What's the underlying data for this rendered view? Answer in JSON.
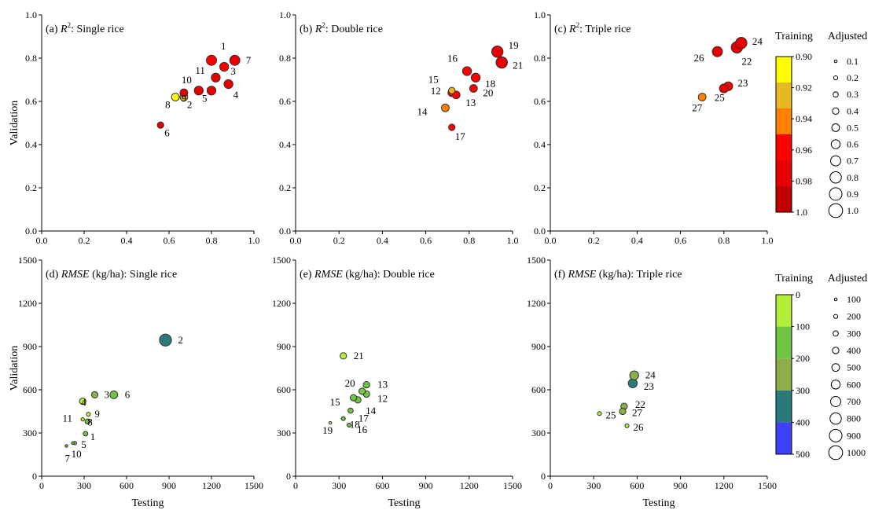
{
  "figure": {
    "legend_r2": {
      "training_title": "Training",
      "adjusted_title": "Adjusted",
      "color_ticks": [
        "0.90",
        "0.92",
        "0.94",
        "0.96",
        "0.98",
        "1.0"
      ],
      "colors": [
        "#ffff00",
        "#e6b822",
        "#ff8000",
        "#ff0000",
        "#e60000",
        "#c00000"
      ],
      "size_labels": [
        "0.1",
        "0.2",
        "0.3",
        "0.4",
        "0.5",
        "0.6",
        "0.7",
        "0.8",
        "0.9",
        "1.0"
      ]
    },
    "legend_rmse": {
      "training_title": "Training",
      "adjusted_title": "Adjusted",
      "color_ticks": [
        "0",
        "100",
        "200",
        "300",
        "400",
        "500"
      ],
      "colors": [
        "#b3ee3a",
        "#6cc644",
        "#8caf4a",
        "#2a7a7a",
        "#4040ff"
      ],
      "size_labels": [
        "100",
        "200",
        "300",
        "400",
        "500",
        "600",
        "700",
        "800",
        "900",
        "1000"
      ]
    }
  },
  "chart_data": [
    {
      "type": "scatter",
      "panel": "a",
      "title": "(a) R²: Single rice",
      "title_parts": [
        "(a) ",
        "R",
        "2",
        ": Single rice"
      ],
      "xlabel": "",
      "ylabel": "Validation",
      "xlim": [
        0,
        1.0
      ],
      "ylim": [
        0,
        1.0
      ],
      "xticks": [
        "0.0",
        "0.2",
        "0.4",
        "0.6",
        "0.8",
        "1.0"
      ],
      "yticks": [
        "0.0",
        "0.2",
        "0.4",
        "0.6",
        "0.8",
        "1.0"
      ],
      "points": [
        {
          "label": "1",
          "x": 0.8,
          "y": 0.79,
          "training": 0.97,
          "adjusted": 0.7
        },
        {
          "label": "2",
          "x": 0.67,
          "y": 0.62,
          "training": 0.94,
          "adjusted": 0.5
        },
        {
          "label": "3",
          "x": 0.86,
          "y": 0.76,
          "training": 0.97,
          "adjusted": 0.6
        },
        {
          "label": "4",
          "x": 0.88,
          "y": 0.68,
          "training": 0.99,
          "adjusted": 0.6
        },
        {
          "label": "5",
          "x": 0.8,
          "y": 0.65,
          "training": 0.99,
          "adjusted": 0.6
        },
        {
          "label": "6",
          "x": 0.56,
          "y": 0.49,
          "training": 0.99,
          "adjusted": 0.4
        },
        {
          "label": "7",
          "x": 0.91,
          "y": 0.79,
          "training": 0.99,
          "adjusted": 0.7
        },
        {
          "label": "8",
          "x": 0.63,
          "y": 0.62,
          "training": 0.9,
          "adjusted": 0.5
        },
        {
          "label": "9",
          "x": 0.74,
          "y": 0.65,
          "training": 0.99,
          "adjusted": 0.6
        },
        {
          "label": "10",
          "x": 0.67,
          "y": 0.64,
          "training": 0.99,
          "adjusted": 0.5
        },
        {
          "label": "11",
          "x": 0.82,
          "y": 0.71,
          "training": 0.99,
          "adjusted": 0.6
        }
      ],
      "label_offsets": {
        "1": [
          12,
          -14
        ],
        "2": [
          4,
          14
        ],
        "3": [
          8,
          10
        ],
        "4": [
          6,
          18
        ],
        "5": [
          -12,
          14
        ],
        "6": [
          5,
          14
        ],
        "7": [
          14,
          4
        ],
        "8": [
          -13,
          14
        ],
        "9": [
          -22,
          14
        ],
        "10": [
          -3,
          -12
        ],
        "11": [
          -26,
          -5
        ]
      }
    },
    {
      "type": "scatter",
      "panel": "b",
      "title": "(b) R²: Double rice",
      "title_parts": [
        "(b) ",
        "R",
        "2",
        ": Double rice"
      ],
      "xlabel": "",
      "ylabel": "",
      "xlim": [
        0,
        1.0
      ],
      "ylim": [
        0,
        1.0
      ],
      "xticks": [
        "0.0",
        "0.2",
        "0.4",
        "0.6",
        "0.8",
        "1.0"
      ],
      "yticks": [
        "0.0",
        "0.2",
        "0.4",
        "0.6",
        "0.8",
        "1.0"
      ],
      "points": [
        {
          "label": "12",
          "x": 0.72,
          "y": 0.64,
          "training": 0.98,
          "adjusted": 0.5
        },
        {
          "label": "13",
          "x": 0.74,
          "y": 0.63,
          "training": 0.98,
          "adjusted": 0.5
        },
        {
          "label": "14",
          "x": 0.69,
          "y": 0.57,
          "training": 0.96,
          "adjusted": 0.5
        },
        {
          "label": "15",
          "x": 0.72,
          "y": 0.65,
          "training": 0.94,
          "adjusted": 0.4
        },
        {
          "label": "16",
          "x": 0.79,
          "y": 0.74,
          "training": 0.97,
          "adjusted": 0.6
        },
        {
          "label": "17",
          "x": 0.72,
          "y": 0.48,
          "training": 0.98,
          "adjusted": 0.4
        },
        {
          "label": "18",
          "x": 0.83,
          "y": 0.71,
          "training": 0.98,
          "adjusted": 0.6
        },
        {
          "label": "19",
          "x": 0.93,
          "y": 0.83,
          "training": 0.99,
          "adjusted": 0.8
        },
        {
          "label": "20",
          "x": 0.82,
          "y": 0.66,
          "training": 0.97,
          "adjusted": 0.5
        },
        {
          "label": "21",
          "x": 0.95,
          "y": 0.78,
          "training": 0.99,
          "adjusted": 0.8
        }
      ],
      "label_offsets": {
        "12": [
          -27,
          2
        ],
        "13": [
          12,
          14
        ],
        "14": [
          -36,
          9
        ],
        "15": [
          -30,
          -10
        ],
        "16": [
          -25,
          -12
        ],
        "17": [
          4,
          16
        ],
        "18": [
          12,
          12
        ],
        "19": [
          14,
          -4
        ],
        "20": [
          12,
          10
        ],
        "21": [
          14,
          8
        ]
      }
    },
    {
      "type": "scatter",
      "panel": "c",
      "title": "(c) R²: Triple rice",
      "title_parts": [
        "(c) ",
        "R",
        "2",
        ": Triple rice"
      ],
      "xlabel": "",
      "ylabel": "",
      "xlim": [
        0,
        1.0
      ],
      "ylim": [
        0,
        1.0
      ],
      "xticks": [
        "0.0",
        "0.2",
        "0.4",
        "0.6",
        "0.8",
        "1.0"
      ],
      "yticks": [
        "0.0",
        "0.2",
        "0.4",
        "0.6",
        "0.8",
        "1.0"
      ],
      "points": [
        {
          "label": "22",
          "x": 0.86,
          "y": 0.85,
          "training": 0.99,
          "adjusted": 0.8
        },
        {
          "label": "23",
          "x": 0.82,
          "y": 0.67,
          "training": 0.97,
          "adjusted": 0.6
        },
        {
          "label": "24",
          "x": 0.88,
          "y": 0.87,
          "training": 0.99,
          "adjusted": 0.8
        },
        {
          "label": "25",
          "x": 0.8,
          "y": 0.66,
          "training": 0.99,
          "adjusted": 0.6
        },
        {
          "label": "26",
          "x": 0.77,
          "y": 0.83,
          "training": 0.99,
          "adjusted": 0.7
        },
        {
          "label": "27",
          "x": 0.7,
          "y": 0.62,
          "training": 0.96,
          "adjusted": 0.5
        }
      ],
      "label_offsets": {
        "22": [
          6,
          22
        ],
        "23": [
          12,
          0
        ],
        "24": [
          14,
          2
        ],
        "25": [
          -12,
          16
        ],
        "26": [
          -30,
          12
        ],
        "27": [
          -13,
          18
        ]
      }
    },
    {
      "type": "scatter",
      "panel": "d",
      "title": "(d) RMSE (kg/ha): Single rice",
      "title_parts": [
        "(d) ",
        "RMSE",
        "",
        " (kg/ha): Single rice"
      ],
      "xlabel": "Testing",
      "ylabel": "Validation",
      "xlim": [
        0,
        1500
      ],
      "ylim": [
        0,
        1500
      ],
      "xticks": [
        "0",
        "300",
        "600",
        "900",
        "1200",
        "1500"
      ],
      "yticks": [
        "0",
        "300",
        "600",
        "900",
        "1200",
        "1500"
      ],
      "points": [
        {
          "label": "1",
          "x": 310,
          "y": 295,
          "training": 120,
          "adjusted": 250
        },
        {
          "label": "2",
          "x": 875,
          "y": 945,
          "training": 380,
          "adjusted": 850
        },
        {
          "label": "3",
          "x": 375,
          "y": 565,
          "training": 200,
          "adjusted": 400
        },
        {
          "label": "4",
          "x": 290,
          "y": 520,
          "training": 70,
          "adjusted": 400
        },
        {
          "label": "5",
          "x": 235,
          "y": 230,
          "training": 120,
          "adjusted": 150
        },
        {
          "label": "6",
          "x": 510,
          "y": 565,
          "training": 150,
          "adjusted": 500
        },
        {
          "label": "7",
          "x": 175,
          "y": 210,
          "training": 100,
          "adjusted": 100
        },
        {
          "label": "8",
          "x": 290,
          "y": 395,
          "training": 60,
          "adjusted": 150
        },
        {
          "label": "9",
          "x": 330,
          "y": 430,
          "training": 70,
          "adjusted": 200
        },
        {
          "label": "10",
          "x": 220,
          "y": 230,
          "training": 120,
          "adjusted": 100
        },
        {
          "label": "11",
          "x": 325,
          "y": 380,
          "training": 120,
          "adjusted": 300
        }
      ],
      "label_offsets": {
        "1": [
          6,
          8
        ],
        "2": [
          16,
          4
        ],
        "3": [
          12,
          4
        ],
        "4": [
          -2,
          6
        ],
        "5": [
          8,
          6
        ],
        "6": [
          14,
          4
        ],
        "7": [
          -2,
          20
        ],
        "8": [
          6,
          8
        ],
        "9": [
          8,
          4
        ],
        "10": [
          -2,
          18
        ],
        "11": [
          -32,
          0
        ]
      }
    },
    {
      "type": "scatter",
      "panel": "e",
      "title": "(e) RMSE (kg/ha): Double rice",
      "title_parts": [
        "(e) ",
        "RMSE",
        "",
        " (kg/ha): Double rice"
      ],
      "xlabel": "Testing",
      "ylabel": "",
      "xlim": [
        0,
        1500
      ],
      "ylim": [
        0,
        1500
      ],
      "xticks": [
        "0",
        "300",
        "600",
        "900",
        "1200",
        "1500"
      ],
      "yticks": [
        "0",
        "300",
        "600",
        "900",
        "1200",
        "1500"
      ],
      "points": [
        {
          "label": "12",
          "x": 490,
          "y": 570,
          "training": 100,
          "adjusted": 400
        },
        {
          "label": "13",
          "x": 490,
          "y": 635,
          "training": 100,
          "adjusted": 400
        },
        {
          "label": "14",
          "x": 430,
          "y": 530,
          "training": 100,
          "adjusted": 400
        },
        {
          "label": "15",
          "x": 400,
          "y": 545,
          "training": 120,
          "adjusted": 400
        },
        {
          "label": "16",
          "x": 370,
          "y": 355,
          "training": 100,
          "adjusted": 200
        },
        {
          "label": "17",
          "x": 380,
          "y": 455,
          "training": 100,
          "adjusted": 300
        },
        {
          "label": "18",
          "x": 330,
          "y": 400,
          "training": 100,
          "adjusted": 200
        },
        {
          "label": "19",
          "x": 240,
          "y": 370,
          "training": 80,
          "adjusted": 100
        },
        {
          "label": "20",
          "x": 460,
          "y": 590,
          "training": 100,
          "adjusted": 400
        },
        {
          "label": "21",
          "x": 330,
          "y": 835,
          "training": 50,
          "adjusted": 400
        }
      ],
      "label_offsets": {
        "12": [
          14,
          10
        ],
        "13": [
          14,
          4
        ],
        "14": [
          10,
          18
        ],
        "15": [
          -30,
          10
        ],
        "16": [
          10,
          10
        ],
        "17": [
          10,
          14
        ],
        "18": [
          8,
          12
        ],
        "19": [
          -10,
          14
        ],
        "20": [
          -22,
          -6
        ],
        "21": [
          13,
          4
        ]
      }
    },
    {
      "type": "scatter",
      "panel": "f",
      "title": "(f) RMSE (kg/ha): Triple rice",
      "title_parts": [
        "(f) ",
        "RMSE",
        "",
        " (kg/ha): Triple rice"
      ],
      "xlabel": "Testing",
      "ylabel": "",
      "xlim": [
        0,
        1500
      ],
      "ylim": [
        0,
        1500
      ],
      "xticks": [
        "0",
        "300",
        "600",
        "900",
        "1200",
        "1500"
      ],
      "yticks": [
        "0",
        "300",
        "600",
        "900",
        "1200",
        "1500"
      ],
      "points": [
        {
          "label": "22",
          "x": 510,
          "y": 485,
          "training": 200,
          "adjusted": 400
        },
        {
          "label": "23",
          "x": 570,
          "y": 645,
          "training": 350,
          "adjusted": 600
        },
        {
          "label": "24",
          "x": 580,
          "y": 700,
          "training": 250,
          "adjusted": 600
        },
        {
          "label": "25",
          "x": 340,
          "y": 435,
          "training": 50,
          "adjusted": 200
        },
        {
          "label": "26",
          "x": 530,
          "y": 350,
          "training": 50,
          "adjusted": 200
        },
        {
          "label": "27",
          "x": 500,
          "y": 450,
          "training": 250,
          "adjusted": 400
        }
      ],
      "label_offsets": {
        "22": [
          14,
          2
        ],
        "23": [
          14,
          8
        ],
        "24": [
          14,
          4
        ],
        "25": [
          8,
          6
        ],
        "26": [
          8,
          6
        ],
        "27": [
          12,
          6
        ]
      }
    }
  ]
}
